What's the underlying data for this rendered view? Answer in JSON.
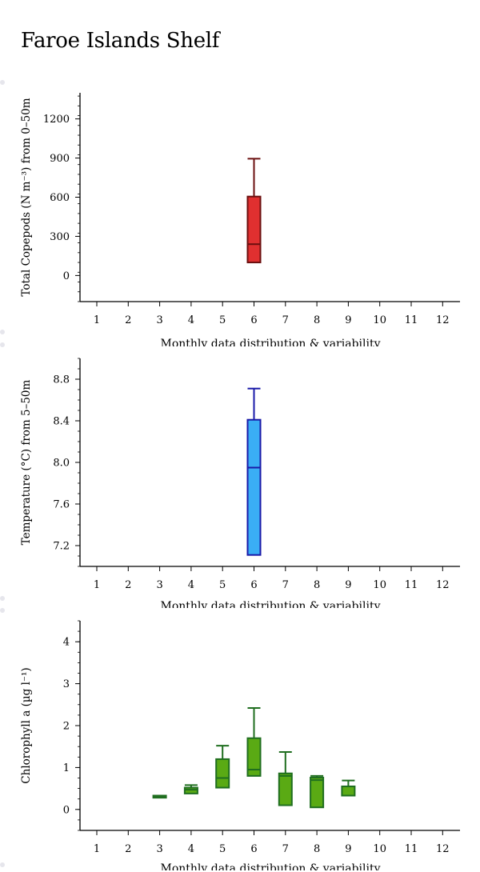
{
  "page": {
    "title": "Faroe Islands Shelf"
  },
  "chart_data": [
    {
      "type": "box",
      "ylabel": "Total Copepods (N m⁻³) from 0–50m",
      "xlabel": "Monthly data distribution & variability",
      "categories": [
        "1",
        "2",
        "3",
        "4",
        "5",
        "6",
        "7",
        "8",
        "9",
        "10",
        "11",
        "12"
      ],
      "ylim": [
        -200,
        1400
      ],
      "yticks": [
        0,
        300,
        600,
        900,
        1200
      ],
      "ytick_labels": [
        "0",
        "300",
        "600",
        "900",
        "1200"
      ],
      "color": {
        "fill": "#e03030",
        "stroke": "#6b0f0f"
      },
      "boxes": [
        {
          "month": 6,
          "whisker_low": 100,
          "q1": 100,
          "median": 240,
          "q3": 605,
          "whisker_high": 895
        }
      ]
    },
    {
      "type": "box",
      "ylabel": "Temperature (°C) from 5–50m",
      "xlabel": "Monthly data distribution & variability",
      "categories": [
        "1",
        "2",
        "3",
        "4",
        "5",
        "6",
        "7",
        "8",
        "9",
        "10",
        "11",
        "12"
      ],
      "ylim": [
        7.0,
        9.0
      ],
      "yticks": [
        7.2,
        7.6,
        8.0,
        8.4,
        8.8
      ],
      "ytick_labels": [
        "7.2",
        "7.6",
        "8.0",
        "8.4",
        "8.8"
      ],
      "color": {
        "fill": "#3aaef5",
        "stroke": "#1a1aa8"
      },
      "boxes": [
        {
          "month": 6,
          "whisker_low": 7.11,
          "q1": 7.11,
          "median": 7.95,
          "q3": 8.41,
          "whisker_high": 8.71
        }
      ]
    },
    {
      "type": "box",
      "ylabel": "Chlorophyll a (µg l⁻¹)",
      "xlabel": "Monthly data distribution & variability",
      "categories": [
        "1",
        "2",
        "3",
        "4",
        "5",
        "6",
        "7",
        "8",
        "9",
        "10",
        "11",
        "12"
      ],
      "ylim": [
        -0.5,
        4.5
      ],
      "yticks": [
        0,
        1,
        2,
        3,
        4
      ],
      "ytick_labels": [
        "0",
        "1",
        "2",
        "3",
        "4"
      ],
      "color": {
        "fill": "#5aaa14",
        "stroke": "#1f6e1f"
      },
      "boxes": [
        {
          "month": 3,
          "whisker_low": 0.28,
          "q1": 0.28,
          "median": 0.31,
          "q3": 0.33,
          "whisker_high": 0.33
        },
        {
          "month": 4,
          "whisker_low": 0.38,
          "q1": 0.38,
          "median": 0.47,
          "q3": 0.52,
          "whisker_high": 0.58
        },
        {
          "month": 5,
          "whisker_low": 0.52,
          "q1": 0.52,
          "median": 0.75,
          "q3": 1.2,
          "whisker_high": 1.52
        },
        {
          "month": 6,
          "whisker_low": 0.8,
          "q1": 0.8,
          "median": 0.95,
          "q3": 1.7,
          "whisker_high": 2.42
        },
        {
          "month": 7,
          "whisker_low": 0.1,
          "q1": 0.1,
          "median": 0.8,
          "q3": 0.86,
          "whisker_high": 1.37
        },
        {
          "month": 8,
          "whisker_low": 0.05,
          "q1": 0.05,
          "median": 0.7,
          "q3": 0.76,
          "whisker_high": 0.8
        },
        {
          "month": 9,
          "whisker_low": 0.33,
          "q1": 0.33,
          "median": 0.33,
          "q3": 0.55,
          "whisker_high": 0.69
        }
      ]
    }
  ]
}
